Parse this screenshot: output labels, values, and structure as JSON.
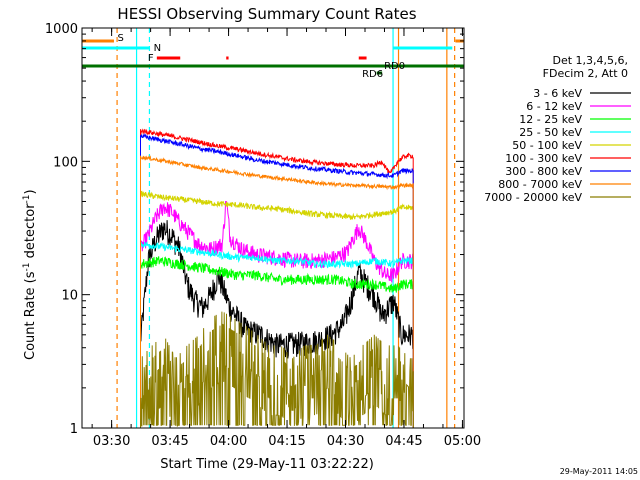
{
  "chart_data": {
    "type": "line",
    "title": "HESSI Observing Summary Count Rates",
    "xlabel": "Start Time (29-May-11 03:22:22)",
    "ylabel_main": "Count Rate (s",
    "ylabel_sup1": "-1",
    "ylabel_mid": " detector",
    "ylabel_sup2": "-1",
    "ylabel_end": ")",
    "yscale": "log",
    "ylim": [
      1,
      1000
    ],
    "xlim_minutes": [
      0,
      98
    ],
    "y_ticks": [
      "1000",
      "100",
      "10",
      "1"
    ],
    "x_ticks": [
      {
        "label": "03:30",
        "min": 7.6
      },
      {
        "label": "03:45",
        "min": 22.6
      },
      {
        "label": "04:00",
        "min": 37.6
      },
      {
        "label": "04:15",
        "min": 52.6
      },
      {
        "label": "04:30",
        "min": 67.6
      },
      {
        "label": "04:45",
        "min": 82.6
      },
      {
        "label": "05:00",
        "min": 97.6
      }
    ],
    "legend_header": [
      "Det 1,3,4,5,6,",
      "FDecim 2, Att 0"
    ],
    "legend_placement": "right",
    "series": [
      {
        "name": "3 - 6 keV",
        "color": "#000000"
      },
      {
        "name": "6 - 12 keV",
        "color": "#ff00ff"
      },
      {
        "name": "12 - 25 keV",
        "color": "#00ff00"
      },
      {
        "name": "25 - 50 keV",
        "color": "#00ffff"
      },
      {
        "name": "50 - 100 keV",
        "color": "#d4d400"
      },
      {
        "name": "100 - 300 keV",
        "color": "#ff0000"
      },
      {
        "name": "300 - 800 keV",
        "color": "#0000ff"
      },
      {
        "name": "800 - 7000 keV",
        "color": "#ff8000"
      },
      {
        "name": "7000 - 20000 keV",
        "color": "#8b7d00"
      }
    ],
    "data_start_min": 15.0,
    "data_end_min": 85.0,
    "series_values": {
      "3 - 6 keV": {
        "x": [
          15,
          17,
          19,
          21,
          23,
          25,
          27,
          29,
          31,
          33,
          35,
          38,
          42,
          46,
          50,
          55,
          60,
          64,
          67,
          69,
          71,
          73,
          75,
          77,
          80,
          82,
          85
        ],
        "y": [
          4.5,
          18,
          26,
          32,
          28,
          22,
          12,
          9,
          8,
          10,
          14,
          8,
          5.5,
          5,
          4.2,
          4.3,
          4.5,
          5,
          6,
          9,
          15,
          12,
          10,
          7,
          9,
          5,
          5
        ]
      },
      "6 - 12 keV": {
        "x": [
          15,
          17,
          19,
          21,
          23,
          25,
          27,
          30,
          33,
          36,
          37,
          38,
          41,
          45,
          50,
          55,
          60,
          65,
          68,
          70,
          71,
          73,
          75,
          78,
          80,
          82,
          85
        ],
        "y": [
          22,
          28,
          38,
          46,
          42,
          35,
          30,
          24,
          22,
          24,
          52,
          27,
          22,
          20,
          19,
          18,
          18,
          19,
          21,
          28,
          32,
          25,
          18,
          14,
          14,
          18,
          18
        ]
      },
      "12 - 25 keV": {
        "x": [
          15,
          20,
          25,
          30,
          35,
          40,
          45,
          50,
          55,
          60,
          65,
          70,
          75,
          80,
          82,
          85
        ],
        "y": [
          17,
          18,
          17,
          16,
          15,
          14,
          14,
          13,
          13,
          13,
          13,
          12,
          12,
          11,
          12,
          12
        ]
      },
      "25 - 50 keV": {
        "x": [
          15,
          20,
          25,
          30,
          35,
          40,
          45,
          50,
          55,
          60,
          65,
          70,
          75,
          80,
          82,
          85
        ],
        "y": [
          24,
          23,
          22,
          21,
          20,
          19,
          19,
          18,
          18,
          17,
          17,
          17,
          18,
          17,
          18,
          18
        ]
      },
      "50 - 100 keV": {
        "x": [
          15,
          20,
          25,
          30,
          35,
          40,
          45,
          50,
          55,
          60,
          65,
          70,
          75,
          80,
          82,
          85
        ],
        "y": [
          57,
          54,
          52,
          50,
          48,
          47,
          45,
          44,
          42,
          40,
          39,
          38,
          40,
          42,
          45,
          45
        ]
      },
      "100 - 300 keV": {
        "x": [
          15,
          20,
          25,
          30,
          35,
          40,
          45,
          50,
          55,
          60,
          65,
          70,
          75,
          77,
          79,
          81,
          83,
          85
        ],
        "y": [
          170,
          160,
          150,
          140,
          130,
          123,
          115,
          108,
          102,
          98,
          95,
          93,
          93,
          100,
          80,
          100,
          110,
          110
        ]
      },
      "300 - 800 keV": {
        "x": [
          15,
          20,
          25,
          30,
          35,
          40,
          45,
          50,
          55,
          60,
          65,
          70,
          75,
          80,
          82,
          85
        ],
        "y": [
          155,
          145,
          135,
          125,
          118,
          110,
          102,
          97,
          92,
          88,
          85,
          82,
          80,
          78,
          85,
          85
        ]
      },
      "800 - 7000 keV": {
        "x": [
          15,
          20,
          25,
          30,
          35,
          40,
          45,
          50,
          55,
          60,
          65,
          70,
          75,
          80,
          82,
          85
        ],
        "y": [
          108,
          102,
          96,
          90,
          86,
          82,
          78,
          75,
          72,
          69,
          67,
          66,
          65,
          64,
          66,
          66
        ]
      },
      "7000 - 20000 keV": {
        "x": [
          15,
          18,
          21,
          24,
          27,
          30,
          33,
          36,
          39,
          42,
          45,
          48,
          51,
          54,
          57,
          60,
          63,
          66,
          69,
          72,
          75,
          78,
          81,
          84
        ],
        "y": [
          2,
          2.5,
          3,
          2,
          2.5,
          3,
          4,
          4.5,
          4,
          3.5,
          3,
          2.5,
          2.5,
          2,
          2.5,
          2.5,
          3,
          2.5,
          2,
          2.5,
          3,
          2.5,
          2.5,
          2
        ]
      }
    },
    "flag_bars": [
      {
        "label": "S",
        "color": "#ff8000",
        "segments": [
          [
            0,
            8.2
          ],
          [
            95.8,
            98
          ]
        ],
        "level": 0
      },
      {
        "label": "N",
        "color": "#00ffff",
        "segments": [
          [
            0,
            17.3
          ],
          [
            79.8,
            95
          ]
        ],
        "level": 1
      },
      {
        "label": "F",
        "color": "#ff0000",
        "segments": [
          [
            19.2,
            25.2
          ],
          [
            37,
            37.6
          ],
          [
            71,
            73
          ]
        ],
        "level": 2
      },
      {
        "label": "",
        "color": "#007000",
        "segments": [
          [
            0,
            98
          ]
        ],
        "level": 3
      },
      {
        "label": "RD0",
        "color": "#007000",
        "segments": [],
        "level": 3
      },
      {
        "label": "RD6",
        "color": "#007000",
        "segments": [
          [
            75.6,
            77
          ]
        ],
        "level": 4
      }
    ],
    "vlines": [
      {
        "min": 9.0,
        "color": "#ff8000",
        "dash": true
      },
      {
        "min": 14.0,
        "color": "#00ffff",
        "dash": false
      },
      {
        "min": 17.3,
        "color": "#00ffff",
        "dash": true
      },
      {
        "min": 79.8,
        "color": "#00ffff",
        "dash": false
      },
      {
        "min": 81.2,
        "color": "#ff8000",
        "dash": false
      },
      {
        "min": 93.6,
        "color": "#ff8000",
        "dash": false
      },
      {
        "min": 95.6,
        "color": "#ff8000",
        "dash": true
      }
    ],
    "footer_timestamp": "29-May-2011 14:05"
  }
}
